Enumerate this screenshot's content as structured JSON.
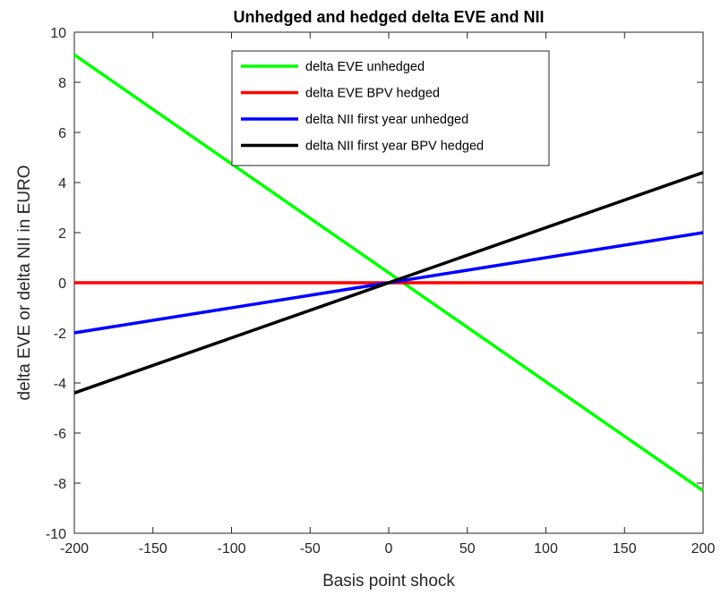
{
  "chart_data": {
    "type": "line",
    "title": "Unhedged and hedged delta EVE and NII",
    "xlabel": "Basis point shock",
    "ylabel": "delta EVE or delta NII in EURO",
    "xlim": [
      -200,
      200
    ],
    "ylim": [
      -10,
      10
    ],
    "x_ticks": [
      -200,
      -150,
      -100,
      -50,
      0,
      50,
      100,
      150,
      200
    ],
    "y_ticks": [
      -10,
      -8,
      -6,
      -4,
      -2,
      0,
      2,
      4,
      6,
      8,
      10
    ],
    "grid": false,
    "legend_position": "top-center",
    "x": [
      -200,
      200
    ],
    "series": [
      {
        "name": "delta EVE unhedged",
        "color": "#00ff00",
        "values": [
          9.1,
          -8.3
        ]
      },
      {
        "name": "delta EVE BPV hedged",
        "color": "#ff0000",
        "values": [
          0,
          0
        ]
      },
      {
        "name": "delta NII first year unhedged",
        "color": "#0000ff",
        "values": [
          -2.0,
          2.0
        ]
      },
      {
        "name": "delta NII first year BPV hedged",
        "color": "#000000",
        "values": [
          -4.4,
          4.4
        ]
      }
    ]
  }
}
